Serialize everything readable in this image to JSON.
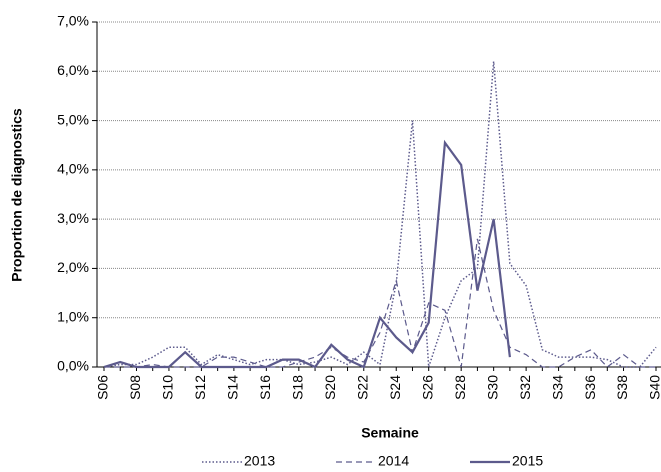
{
  "chart_data": {
    "type": "line",
    "x_label": "Semaine",
    "y_label": "Proportion de diagnostics",
    "categories": [
      "S06",
      null,
      "S08",
      null,
      "S10",
      null,
      "S12",
      null,
      "S14",
      null,
      "S16",
      null,
      "S18",
      null,
      "S20",
      null,
      "S22",
      null,
      "S24",
      null,
      "S26",
      null,
      "S28",
      null,
      "S30",
      null,
      "S32",
      null,
      "S34",
      null,
      "S36",
      null,
      "S38",
      null,
      "S40"
    ],
    "ylim": [
      0,
      7
    ],
    "yticks": [
      {
        "value": 0,
        "label": "0,0%"
      },
      {
        "value": 1,
        "label": "1,0%"
      },
      {
        "value": 2,
        "label": "2,0%"
      },
      {
        "value": 3,
        "label": "3,0%"
      },
      {
        "value": 4,
        "label": "4,0%"
      },
      {
        "value": 5,
        "label": "5,0%"
      },
      {
        "value": 6,
        "label": "6,0%"
      },
      {
        "value": 7,
        "label": "7,0%"
      }
    ],
    "grid": true,
    "legend": "bottom",
    "series": [
      {
        "name": "2013",
        "color": "#5c5a8c",
        "style": "dotted",
        "values": [
          0,
          0.05,
          0.05,
          0.2,
          0.4,
          0.4,
          0.05,
          0.25,
          0.15,
          0.05,
          0.15,
          0.15,
          0.05,
          0.1,
          0.2,
          0.05,
          0.3,
          0.05,
          1.7,
          5.0,
          0,
          1.0,
          1.75,
          2.0,
          6.2,
          2.1,
          1.65,
          0.35,
          0.2,
          0.2,
          0.2,
          0.15,
          0,
          0,
          0.4
        ]
      },
      {
        "name": "2014",
        "color": "#5c5a8c",
        "style": "dashed",
        "values": [
          0,
          0,
          0,
          0.05,
          0,
          0,
          0,
          0.2,
          0.2,
          0.1,
          0,
          0,
          0.1,
          0.2,
          0.4,
          0.2,
          0.1,
          0.7,
          1.75,
          0.3,
          1.3,
          1.15,
          0,
          2.6,
          1.15,
          0.4,
          0.25,
          0,
          0,
          0.2,
          0.35,
          0,
          0.25,
          0,
          0
        ]
      },
      {
        "name": "2015",
        "color": "#5c5a8c",
        "style": "solid",
        "values": [
          0,
          0.1,
          0,
          0,
          0,
          0.3,
          0,
          0,
          0,
          0,
          0,
          0.15,
          0.15,
          0,
          0.45,
          0.15,
          0,
          1.0,
          0.6,
          0.3,
          0.9,
          4.55,
          4.1,
          1.55,
          3.0,
          0.2,
          null,
          null,
          null,
          null,
          null,
          null,
          null,
          null,
          null
        ]
      }
    ]
  }
}
